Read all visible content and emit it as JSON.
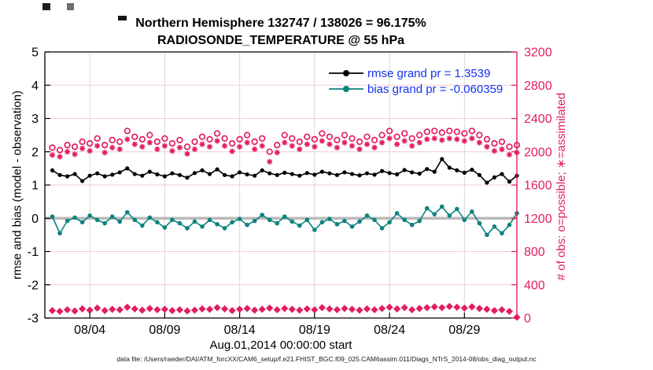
{
  "figure": {
    "footer": "data file: /Users/raeder/DAI/ATM_forcXX/CAM6_setup/f.e21.FHIST_BGC.f09_025.CAM6assim.011/Diags_NTrS_2014-08/obs_diag_output.nc"
  },
  "chart_data": {
    "type": "line",
    "title": "Northern Hemisphere 132747 / 138026 = 96.175%",
    "subtitle": "RADIOSONDE_TEMPERATURE @ 55 hPa",
    "xlabel": "Aug.01,2014 00:00:00 start",
    "ylabel_left": "rmse and bias (model - observation)",
    "ylabel_right": "# of obs: o=possible; ∗=assimilated",
    "ylim_left": [
      -3,
      5
    ],
    "ylim_right": [
      0,
      3200
    ],
    "yticks_left": [
      -3,
      -2,
      -1,
      0,
      1,
      2,
      3,
      4,
      5
    ],
    "yticks_right": [
      0,
      400,
      800,
      1200,
      1600,
      2000,
      2400,
      2800,
      3200
    ],
    "xtick_labels": [
      "08/04",
      "08/09",
      "08/14",
      "08/19",
      "08/24",
      "08/29"
    ],
    "xtick_days": [
      3,
      8,
      13,
      18,
      23,
      28
    ],
    "x_days_range": [
      0,
      31.5
    ],
    "x_step_days": 0.5,
    "x_first_day": 0.5,
    "grid": true,
    "legend_position": "top-right-inside",
    "legend": [
      {
        "label": "rmse grand pr = 1.3539",
        "color": "#000000"
      },
      {
        "label": "bias grand pr = -0.060359",
        "color": "#0e837e"
      }
    ],
    "colors": {
      "rmse": "#000000",
      "bias": "#0e837e",
      "obs": "#e21e5f",
      "legend_text": "#1632ee",
      "zero_line": "#b9b9b9",
      "vgrid": "#d9d9d9",
      "hgrid": "#f2ccd7",
      "spine": "#000000"
    },
    "series": [
      {
        "name": "rmse",
        "axis": "left",
        "marker": "dot",
        "values": [
          1.44,
          1.3,
          1.26,
          1.33,
          1.12,
          1.28,
          1.35,
          1.26,
          1.31,
          1.38,
          1.5,
          1.33,
          1.28,
          1.4,
          1.32,
          1.26,
          1.35,
          1.3,
          1.22,
          1.36,
          1.44,
          1.33,
          1.47,
          1.3,
          1.26,
          1.38,
          1.32,
          1.28,
          1.44,
          1.35,
          1.3,
          1.37,
          1.33,
          1.28,
          1.36,
          1.31,
          1.4,
          1.35,
          1.3,
          1.38,
          1.33,
          1.29,
          1.35,
          1.31,
          1.42,
          1.36,
          1.32,
          1.45,
          1.38,
          1.34,
          1.48,
          1.4,
          1.78,
          1.52,
          1.44,
          1.37,
          1.46,
          1.3,
          1.07,
          1.23,
          1.33,
          1.1,
          1.28
        ]
      },
      {
        "name": "bias",
        "axis": "left",
        "marker": "dot",
        "values": [
          0.05,
          -0.45,
          -0.08,
          0.02,
          -0.12,
          0.08,
          -0.05,
          -0.15,
          0.05,
          -0.1,
          0.18,
          -0.05,
          -0.22,
          0.02,
          -0.12,
          -0.28,
          -0.05,
          -0.15,
          -0.3,
          -0.1,
          -0.25,
          -0.05,
          -0.18,
          -0.3,
          -0.12,
          -0.02,
          -0.2,
          -0.08,
          0.1,
          -0.05,
          -0.15,
          0.05,
          -0.1,
          -0.22,
          -0.05,
          -0.35,
          -0.12,
          -0.02,
          -0.18,
          -0.08,
          -0.25,
          -0.1,
          0.08,
          -0.05,
          -0.3,
          -0.12,
          0.15,
          -0.05,
          -0.2,
          -0.08,
          0.3,
          0.12,
          0.35,
          0.08,
          0.28,
          -0.05,
          0.2,
          -0.15,
          -0.5,
          -0.25,
          -0.45,
          -0.2,
          0.15
        ]
      },
      {
        "name": "obs possible",
        "axis": "right",
        "marker": "circle-open",
        "values": [
          2050,
          2020,
          2080,
          2060,
          2120,
          2100,
          2160,
          2080,
          2140,
          2120,
          2250,
          2180,
          2150,
          2200,
          2120,
          2160,
          2100,
          2140,
          2060,
          2120,
          2180,
          2150,
          2220,
          2160,
          2100,
          2150,
          2200,
          2120,
          2160,
          2000,
          2080,
          2200,
          2160,
          2120,
          2180,
          2150,
          2220,
          2180,
          2140,
          2200,
          2160,
          2120,
          2180,
          2140,
          2200,
          2250,
          2180,
          2220,
          2160,
          2200,
          2240,
          2250,
          2230,
          2250,
          2240,
          2220,
          2250,
          2200,
          2150,
          2100,
          2120,
          2060,
          2080
        ]
      },
      {
        "name": "obs assimilated",
        "axis": "right",
        "marker": "asterisk",
        "values": [
          1960,
          1940,
          2000,
          1970,
          2040,
          2010,
          2070,
          1990,
          2050,
          2030,
          2150,
          2090,
          2060,
          2110,
          2030,
          2070,
          2010,
          2050,
          1975,
          2030,
          2090,
          2060,
          2130,
          2070,
          2005,
          2060,
          2110,
          2030,
          2070,
          1880,
          1990,
          2110,
          2070,
          2030,
          2090,
          2060,
          2130,
          2090,
          2050,
          2110,
          2070,
          2030,
          2090,
          2050,
          2110,
          2160,
          2090,
          2130,
          2070,
          2110,
          2150,
          2160,
          2140,
          2160,
          2150,
          2130,
          2160,
          2110,
          2060,
          2010,
          2030,
          1965,
          1990
        ]
      },
      {
        "name": "obs low band",
        "axis": "right",
        "marker": "diamond",
        "values": [
          90,
          80,
          100,
          85,
          110,
          95,
          120,
          90,
          105,
          100,
          130,
          110,
          95,
          115,
          100,
          105,
          90,
          100,
          85,
          95,
          110,
          105,
          125,
          110,
          90,
          105,
          115,
          95,
          105,
          120,
          100,
          115,
          105,
          95,
          110,
          100,
          125,
          110,
          100,
          115,
          105,
          95,
          110,
          100,
          115,
          130,
          110,
          125,
          100,
          115,
          125,
          135,
          125,
          140,
          130,
          120,
          135,
          115,
          105,
          90,
          100,
          80,
          10
        ]
      }
    ]
  }
}
